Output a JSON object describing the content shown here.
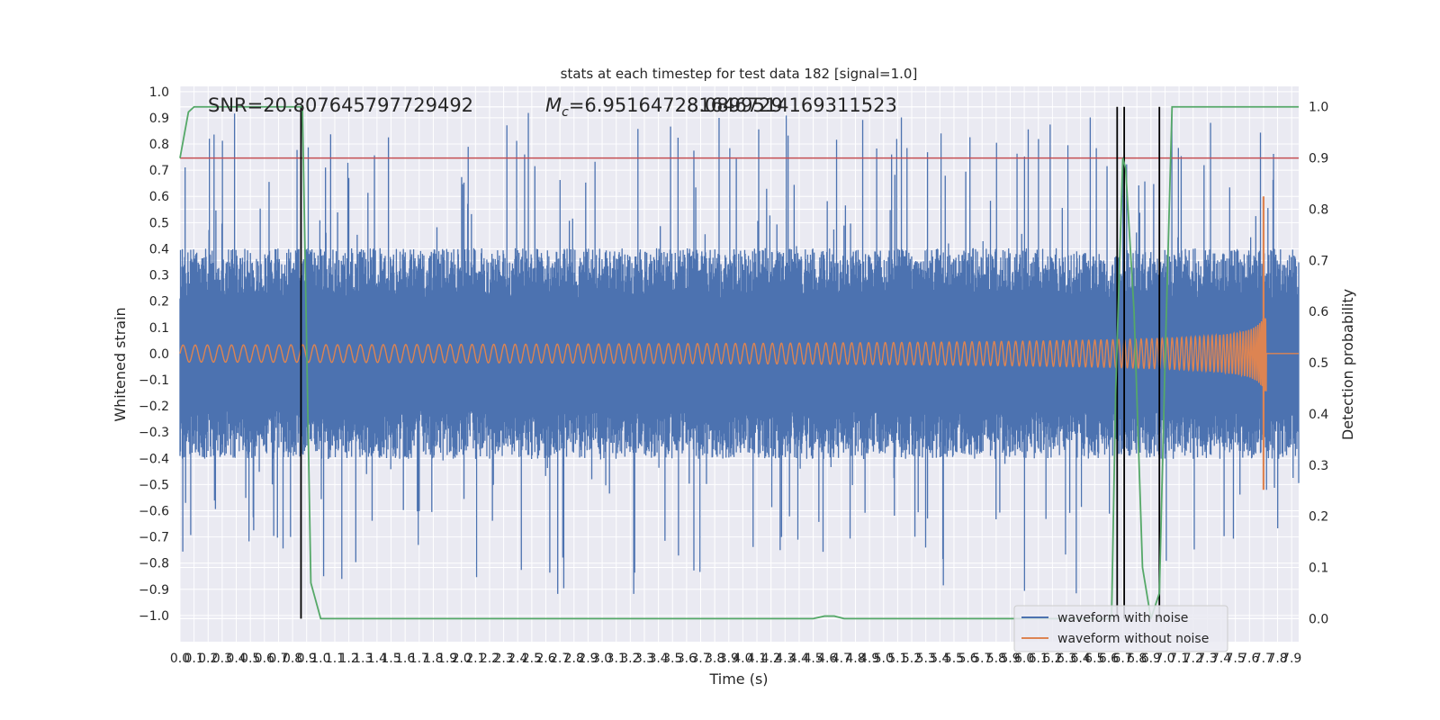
{
  "chart_data": {
    "type": "line",
    "title": "stats at each timestep for test data 182 [signal=1.0]",
    "xlabel": "Time (s)",
    "ylabel_left": "Whitened strain",
    "ylabel_right": "Detection probability",
    "xlim": [
      0.0,
      7.95
    ],
    "ylim_left": [
      -1.1,
      1.02
    ],
    "ylim_right": [
      -0.045,
      1.04
    ],
    "x_ticks": [
      0.0,
      0.1,
      0.2,
      0.3,
      0.4,
      0.5,
      0.6,
      0.7,
      0.8,
      0.9,
      1.0,
      1.1,
      1.2,
      1.3,
      1.4,
      1.5,
      1.6,
      1.7,
      1.8,
      1.9,
      2.0,
      2.1,
      2.2,
      2.3,
      2.4,
      2.5,
      2.6,
      2.7,
      2.8,
      2.9,
      3.0,
      3.1,
      3.2,
      3.3,
      3.4,
      3.5,
      3.6,
      3.7,
      3.8,
      3.9,
      4.0,
      4.1,
      4.2,
      4.3,
      4.4,
      4.5,
      4.6,
      4.7,
      4.8,
      4.9,
      5.0,
      5.1,
      5.2,
      5.3,
      5.4,
      5.5,
      5.6,
      5.7,
      5.8,
      5.9,
      6.0,
      6.1,
      6.2,
      6.3,
      6.4,
      6.5,
      6.6,
      6.7,
      6.8,
      6.9,
      7.0,
      7.1,
      7.2,
      7.3,
      7.4,
      7.5,
      7.6,
      7.7,
      7.8,
      7.9
    ],
    "x_tick_labels": [
      "0.0",
      "0.1",
      "0.2",
      "0.3",
      "0.4",
      "0.5",
      "0.6",
      "0.7",
      "0.8",
      "0.9",
      "1.0",
      "1.1",
      "1.2",
      "1.3",
      "1.4",
      "1.5",
      "1.6",
      "1.7",
      "1.8",
      "1.9",
      "2.0",
      "2.1",
      "2.2",
      "2.3",
      "2.4",
      "2.5",
      "2.6",
      "2.7",
      "2.8",
      "2.9",
      "3.0",
      "3.1",
      "3.2",
      "3.3",
      "3.4",
      "3.5",
      "3.6",
      "3.7",
      "3.8",
      "3.9",
      "4.0",
      "4.1",
      "4.2",
      "4.3",
      "4.4",
      "4.5",
      "4.6",
      "4.7",
      "4.8",
      "4.9",
      "5.0",
      "5.1",
      "5.2",
      "5.3",
      "5.4",
      "5.5",
      "5.6",
      "5.7",
      "5.8",
      "5.9",
      "6.0",
      "6.1",
      "6.2",
      "6.3",
      "6.4",
      "6.5",
      "6.6",
      "6.7",
      "6.8",
      "6.9",
      "7.0",
      "7.1",
      "7.2",
      "7.3",
      "7.4",
      "7.5",
      "7.6",
      "7.7",
      "7.8",
      "7.9"
    ],
    "y_ticks_left": [
      1.0,
      0.9,
      0.8,
      0.7,
      0.6,
      0.5,
      0.4,
      0.3,
      0.2,
      0.1,
      0.0,
      -0.1,
      -0.2,
      -0.3,
      -0.4,
      -0.5,
      -0.6,
      -0.7,
      -0.8,
      -0.9,
      -1.0
    ],
    "y_tick_labels_left": [
      "1.0",
      "0.9",
      "0.8",
      "0.7",
      "0.6",
      "0.5",
      "0.4",
      "0.3",
      "0.2",
      "0.1",
      "0.0",
      "−0.1",
      "−0.2",
      "−0.3",
      "−0.4",
      "−0.5",
      "−0.6",
      "−0.7",
      "−0.8",
      "−0.9",
      "−1.0"
    ],
    "y_ticks_right": [
      1.0,
      0.9,
      0.8,
      0.7,
      0.6,
      0.5,
      0.4,
      0.3,
      0.2,
      0.1,
      0.0
    ],
    "y_tick_labels_right": [
      "1.0",
      "0.9",
      "0.8",
      "0.7",
      "0.6",
      "0.5",
      "0.4",
      "0.3",
      "0.2",
      "0.1",
      "0.0"
    ],
    "annotations": {
      "snr": "SNR=20.807645797729492",
      "mc_symbol": "M",
      "mc_subscript": "c",
      "mc_value": "=6.951647281646729",
      "overlap_value": "8.0899514169311523"
    },
    "threshold": {
      "value": 0.9,
      "axis": "right",
      "color": "#c44e52"
    },
    "vertical_markers": [
      0.86,
      6.66,
      6.71,
      6.96
    ],
    "vertical_marker_range_right": [
      0.0,
      1.0
    ],
    "series": [
      {
        "name": "waveform with noise",
        "color": "#4c72b0",
        "axis": "left",
        "kind": "noise",
        "base_amplitude": 0.35,
        "peak_max": 0.92
      },
      {
        "name": "waveform without noise",
        "color": "#dd8452",
        "axis": "left",
        "kind": "chirp",
        "start_amplitude": 0.025,
        "peak_amplitude": 0.6,
        "min_amplitude": -0.52,
        "merger_time": 7.72,
        "end_time": 7.95
      },
      {
        "name": "detection probability",
        "color": "#55a868",
        "axis": "right",
        "kind": "probability",
        "x": [
          0.0,
          0.06,
          0.1,
          0.16,
          0.3,
          0.5,
          0.7,
          0.85,
          0.87,
          0.93,
          1.0,
          1.5,
          2.0,
          3.0,
          4.0,
          4.5,
          4.58,
          4.65,
          4.72,
          5.0,
          6.0,
          6.62,
          6.65,
          6.7,
          6.72,
          6.78,
          6.84,
          6.9,
          6.96,
          7.0,
          7.05,
          7.5,
          7.95
        ],
        "y": [
          0.9,
          0.99,
          1.0,
          1.0,
          1.0,
          1.0,
          1.0,
          1.0,
          1.0,
          0.07,
          0.0,
          0.0,
          0.0,
          0.0,
          0.0,
          0.0,
          0.005,
          0.005,
          0.0,
          0.0,
          0.0,
          0.0,
          0.45,
          0.9,
          0.88,
          0.6,
          0.1,
          0.0,
          0.05,
          0.5,
          1.0,
          1.0,
          1.0
        ]
      }
    ],
    "legend": {
      "position": "lower-right",
      "entries": [
        {
          "label": "waveform with noise",
          "color": "#4c72b0"
        },
        {
          "label": "waveform without noise",
          "color": "#dd8452"
        }
      ]
    },
    "grid": true
  }
}
